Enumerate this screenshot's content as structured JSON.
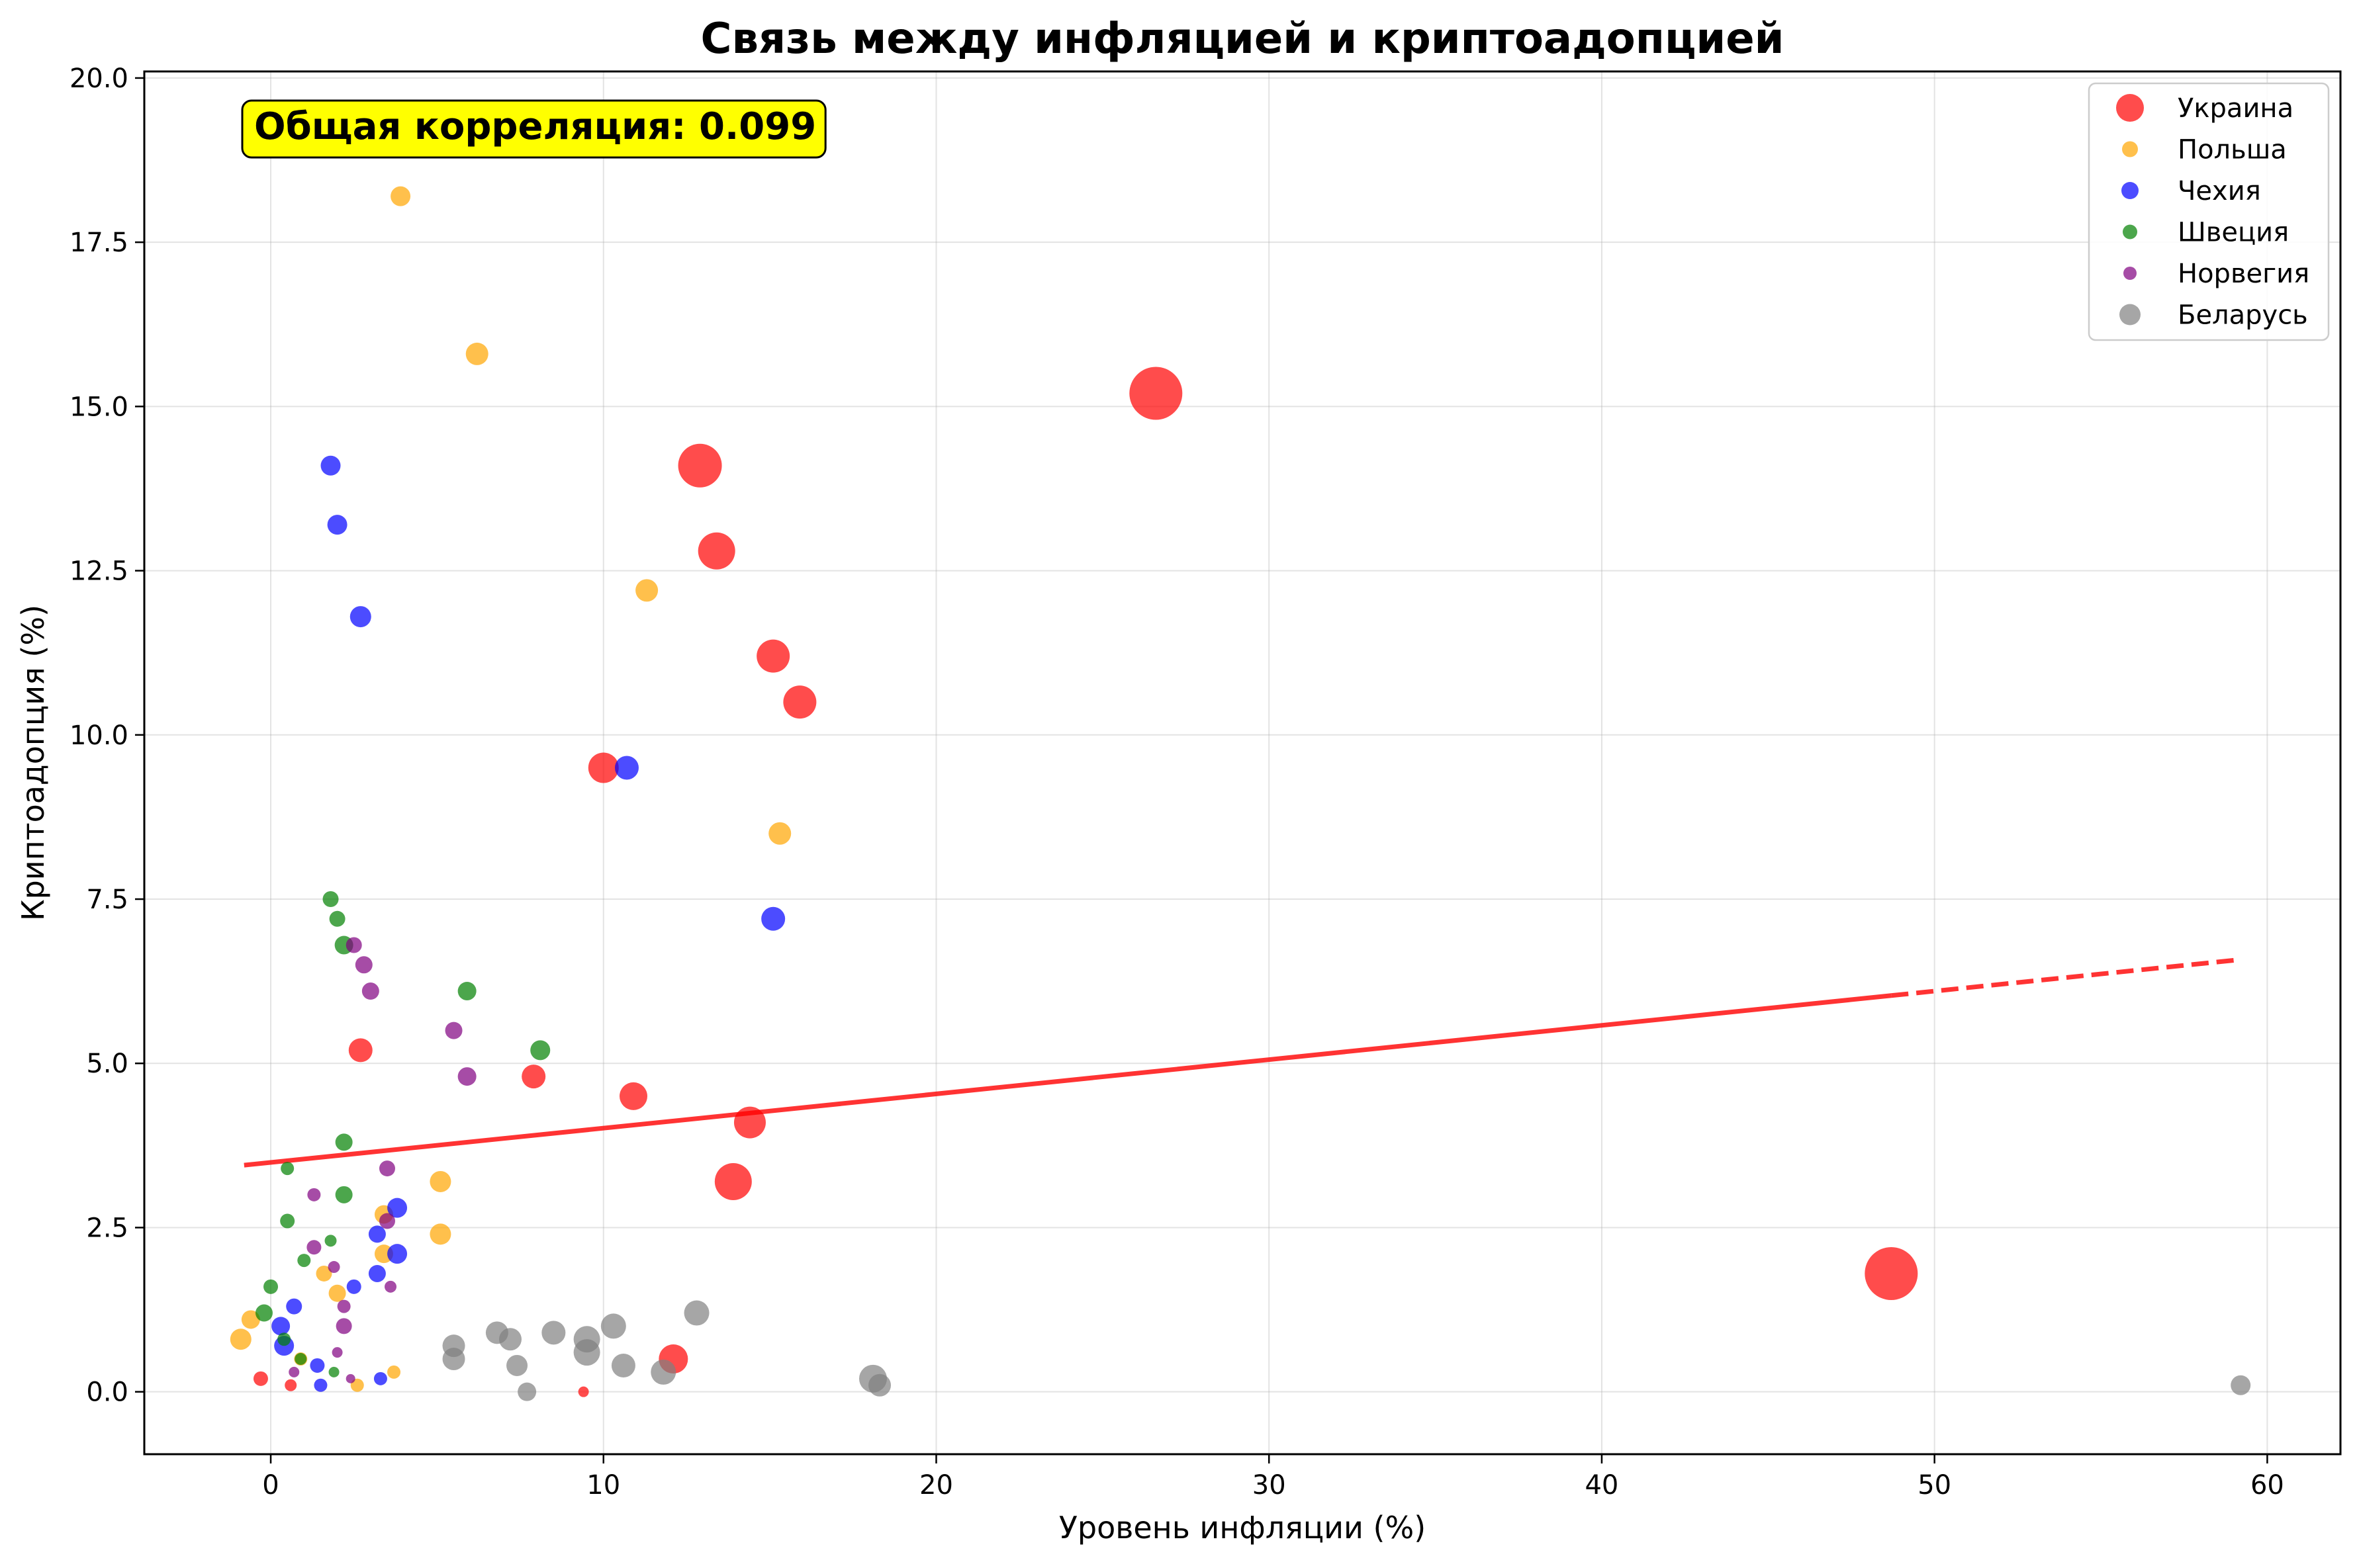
{
  "chart_data": {
    "type": "scatter",
    "title": "Связь между инфляцией и криптоадопцией",
    "xlabel": "Уровень инфляции (%)",
    "ylabel": "Криптоадопция (%)",
    "xlim": [
      -3.8,
      62.2
    ],
    "ylim": [
      -0.95,
      20.1
    ],
    "xticks": [
      0,
      10,
      20,
      30,
      40,
      50,
      60
    ],
    "yticks": [
      0.0,
      2.5,
      5.0,
      7.5,
      10.0,
      12.5,
      15.0,
      17.5,
      20.0
    ],
    "xtick_labels": [
      "0",
      "10",
      "20",
      "30",
      "40",
      "50",
      "60"
    ],
    "ytick_labels": [
      "0.0",
      "2.5",
      "5.0",
      "7.5",
      "10.0",
      "12.5",
      "15.0",
      "17.5",
      "20.0"
    ],
    "grid": true,
    "legend_position": "top-right",
    "annotation": "Общая корреляция: 0.099",
    "annotation_color": "#ffff00",
    "trendline": {
      "color": "#ff0000",
      "x": [
        -0.8,
        59.2
      ],
      "y": [
        3.45,
        6.58
      ],
      "solid_until_x": 48.7
    },
    "series": [
      {
        "name": "Украина",
        "color": "#ff0000",
        "points": [
          {
            "x": 26.6,
            "y": 15.2,
            "s": 40
          },
          {
            "x": 48.7,
            "y": 1.8,
            "s": 40
          },
          {
            "x": 12.9,
            "y": 14.1,
            "s": 33
          },
          {
            "x": 13.4,
            "y": 12.8,
            "s": 28
          },
          {
            "x": 15.1,
            "y": 11.2,
            "s": 25
          },
          {
            "x": 15.9,
            "y": 10.5,
            "s": 25
          },
          {
            "x": 10.0,
            "y": 9.5,
            "s": 23
          },
          {
            "x": 13.9,
            "y": 3.2,
            "s": 28
          },
          {
            "x": 14.4,
            "y": 4.1,
            "s": 24
          },
          {
            "x": 10.9,
            "y": 4.5,
            "s": 21
          },
          {
            "x": 7.9,
            "y": 4.8,
            "s": 18
          },
          {
            "x": 2.7,
            "y": 5.2,
            "s": 18
          },
          {
            "x": 12.1,
            "y": 0.5,
            "s": 22
          },
          {
            "x": -0.3,
            "y": 0.2,
            "s": 11
          },
          {
            "x": 0.6,
            "y": 0.1,
            "s": 9
          },
          {
            "x": 9.4,
            "y": 0.0,
            "s": 8
          }
        ]
      },
      {
        "name": "Польша",
        "color": "#ffa500",
        "points": [
          {
            "x": 3.9,
            "y": 18.2,
            "s": 15
          },
          {
            "x": 6.2,
            "y": 15.8,
            "s": 17
          },
          {
            "x": 11.3,
            "y": 12.2,
            "s": 17
          },
          {
            "x": 15.3,
            "y": 8.5,
            "s": 17
          },
          {
            "x": 5.1,
            "y": 3.2,
            "s": 16
          },
          {
            "x": 5.1,
            "y": 2.4,
            "s": 16
          },
          {
            "x": 3.4,
            "y": 2.7,
            "s": 14
          },
          {
            "x": 3.4,
            "y": 2.1,
            "s": 14
          },
          {
            "x": 2.0,
            "y": 1.5,
            "s": 13
          },
          {
            "x": 1.6,
            "y": 1.8,
            "s": 12
          },
          {
            "x": -0.9,
            "y": 0.8,
            "s": 16
          },
          {
            "x": -0.6,
            "y": 1.1,
            "s": 14
          },
          {
            "x": 3.7,
            "y": 0.3,
            "s": 10
          },
          {
            "x": 2.6,
            "y": 0.1,
            "s": 10
          },
          {
            "x": 0.9,
            "y": 0.5,
            "s": 10
          }
        ]
      },
      {
        "name": "Чехия",
        "color": "#0000ff",
        "points": [
          {
            "x": 1.8,
            "y": 14.1,
            "s": 15
          },
          {
            "x": 2.0,
            "y": 13.2,
            "s": 15
          },
          {
            "x": 2.7,
            "y": 11.8,
            "s": 16
          },
          {
            "x": 10.7,
            "y": 9.5,
            "s": 18
          },
          {
            "x": 15.1,
            "y": 7.2,
            "s": 18
          },
          {
            "x": 3.8,
            "y": 2.8,
            "s": 15
          },
          {
            "x": 3.8,
            "y": 2.1,
            "s": 15
          },
          {
            "x": 3.2,
            "y": 2.4,
            "s": 13
          },
          {
            "x": 3.2,
            "y": 1.8,
            "s": 13
          },
          {
            "x": 2.5,
            "y": 1.6,
            "s": 11
          },
          {
            "x": 0.7,
            "y": 1.3,
            "s": 12
          },
          {
            "x": 0.3,
            "y": 1.0,
            "s": 14
          },
          {
            "x": 0.4,
            "y": 0.7,
            "s": 15
          },
          {
            "x": 1.4,
            "y": 0.4,
            "s": 11
          },
          {
            "x": 1.5,
            "y": 0.1,
            "s": 10
          },
          {
            "x": 3.3,
            "y": 0.2,
            "s": 10
          }
        ]
      },
      {
        "name": "Швеция",
        "color": "#008000",
        "points": [
          {
            "x": 1.8,
            "y": 7.5,
            "s": 12
          },
          {
            "x": 2.0,
            "y": 7.2,
            "s": 12
          },
          {
            "x": 2.2,
            "y": 6.8,
            "s": 14
          },
          {
            "x": 5.9,
            "y": 6.1,
            "s": 14
          },
          {
            "x": 8.1,
            "y": 5.2,
            "s": 15
          },
          {
            "x": 2.2,
            "y": 3.8,
            "s": 13
          },
          {
            "x": 2.2,
            "y": 3.0,
            "s": 13
          },
          {
            "x": 0.5,
            "y": 3.4,
            "s": 10
          },
          {
            "x": 0.5,
            "y": 2.6,
            "s": 11
          },
          {
            "x": 1.8,
            "y": 2.3,
            "s": 9
          },
          {
            "x": 1.0,
            "y": 2.0,
            "s": 10
          },
          {
            "x": 0.0,
            "y": 1.6,
            "s": 11
          },
          {
            "x": -0.2,
            "y": 1.2,
            "s": 13
          },
          {
            "x": 0.4,
            "y": 0.8,
            "s": 10
          },
          {
            "x": 0.9,
            "y": 0.5,
            "s": 9
          },
          {
            "x": 1.9,
            "y": 0.3,
            "s": 8
          }
        ]
      },
      {
        "name": "Норвегия",
        "color": "#800080",
        "points": [
          {
            "x": 2.5,
            "y": 6.8,
            "s": 12
          },
          {
            "x": 2.8,
            "y": 6.5,
            "s": 13
          },
          {
            "x": 3.0,
            "y": 6.1,
            "s": 13
          },
          {
            "x": 5.5,
            "y": 5.5,
            "s": 13
          },
          {
            "x": 5.9,
            "y": 4.8,
            "s": 14
          },
          {
            "x": 3.5,
            "y": 3.4,
            "s": 12
          },
          {
            "x": 1.3,
            "y": 3.0,
            "s": 10
          },
          {
            "x": 3.5,
            "y": 2.6,
            "s": 12
          },
          {
            "x": 1.3,
            "y": 2.2,
            "s": 11
          },
          {
            "x": 1.9,
            "y": 1.9,
            "s": 9
          },
          {
            "x": 3.6,
            "y": 1.6,
            "s": 9
          },
          {
            "x": 2.2,
            "y": 1.3,
            "s": 10
          },
          {
            "x": 2.2,
            "y": 1.0,
            "s": 12
          },
          {
            "x": 2.0,
            "y": 0.6,
            "s": 8
          },
          {
            "x": 0.7,
            "y": 0.3,
            "s": 8
          },
          {
            "x": 2.4,
            "y": 0.2,
            "s": 7
          }
        ]
      },
      {
        "name": "Беларусь",
        "color": "#808080",
        "points": [
          {
            "x": 12.8,
            "y": 1.2,
            "s": 19
          },
          {
            "x": 10.3,
            "y": 1.0,
            "s": 19
          },
          {
            "x": 6.8,
            "y": 0.9,
            "s": 17
          },
          {
            "x": 8.5,
            "y": 0.9,
            "s": 18
          },
          {
            "x": 9.5,
            "y": 0.8,
            "s": 20
          },
          {
            "x": 7.2,
            "y": 0.8,
            "s": 17
          },
          {
            "x": 5.5,
            "y": 0.7,
            "s": 17
          },
          {
            "x": 9.5,
            "y": 0.6,
            "s": 20
          },
          {
            "x": 5.5,
            "y": 0.5,
            "s": 17
          },
          {
            "x": 7.4,
            "y": 0.4,
            "s": 16
          },
          {
            "x": 10.6,
            "y": 0.4,
            "s": 18
          },
          {
            "x": 11.8,
            "y": 0.3,
            "s": 19
          },
          {
            "x": 18.1,
            "y": 0.2,
            "s": 21
          },
          {
            "x": 18.3,
            "y": 0.1,
            "s": 17
          },
          {
            "x": 7.7,
            "y": 0.0,
            "s": 14
          },
          {
            "x": 59.2,
            "y": 0.1,
            "s": 15
          }
        ]
      }
    ]
  }
}
